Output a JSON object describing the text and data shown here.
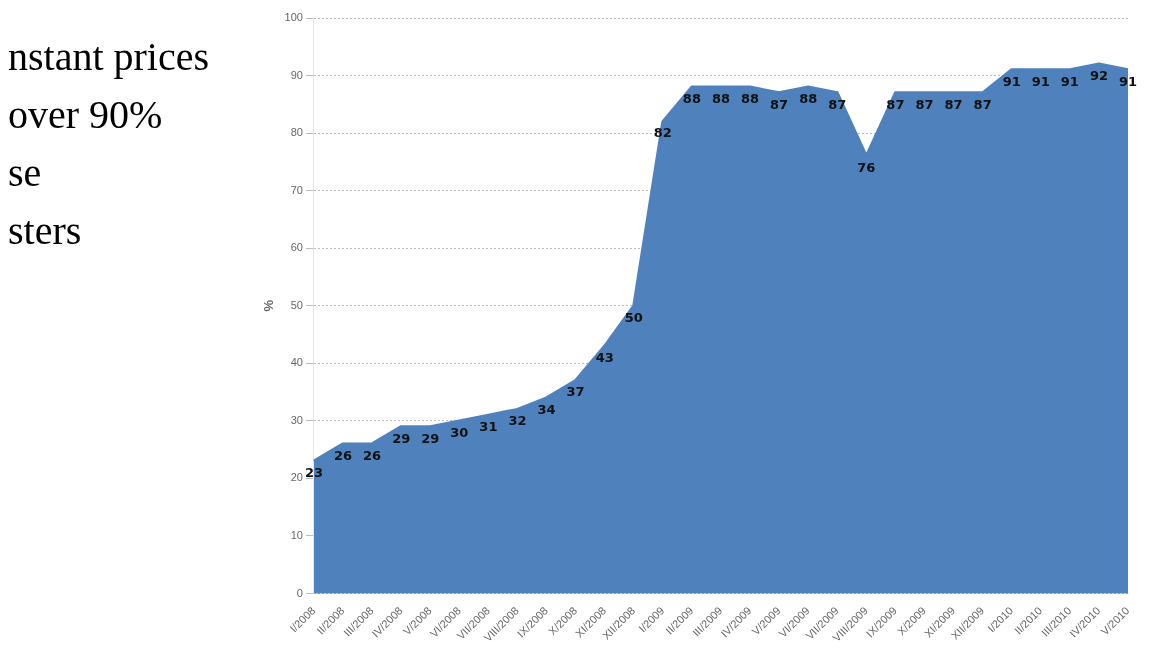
{
  "chart_data": {
    "type": "area",
    "ylabel": "%",
    "categories": [
      "I/2008",
      "II/2008",
      "III/2008",
      "IV/2008",
      "V/2008",
      "VI/2008",
      "VII/2008",
      "VIII/2008",
      "IX/2008",
      "X/2008",
      "XI/2008",
      "XII/2008",
      "I/2009",
      "II/2009",
      "III/2009",
      "IV/2009",
      "V/2009",
      "VI/2009",
      "VII/2009",
      "VIII/2009",
      "IX/2009",
      "X/2009",
      "XI/2009",
      "XII/2009",
      "I/2010",
      "II/2010",
      "III/2010",
      "IV/2010",
      "V/2010"
    ],
    "values": [
      23,
      26,
      26,
      29,
      29,
      30,
      31,
      32,
      34,
      37,
      43,
      50,
      82,
      88,
      88,
      88,
      87,
      88,
      87,
      76,
      87,
      87,
      87,
      87,
      91,
      91,
      91,
      92,
      91
    ],
    "color": "#4f81bd",
    "ylim": [
      0,
      100
    ],
    "yticks": [
      0,
      10,
      20,
      30,
      40,
      50,
      60,
      70,
      80,
      90,
      100
    ],
    "grid": "y",
    "data_labels": true,
    "legend": false,
    "annotations": [
      "nstant prices",
      "over 90%",
      "se",
      "sters"
    ]
  }
}
